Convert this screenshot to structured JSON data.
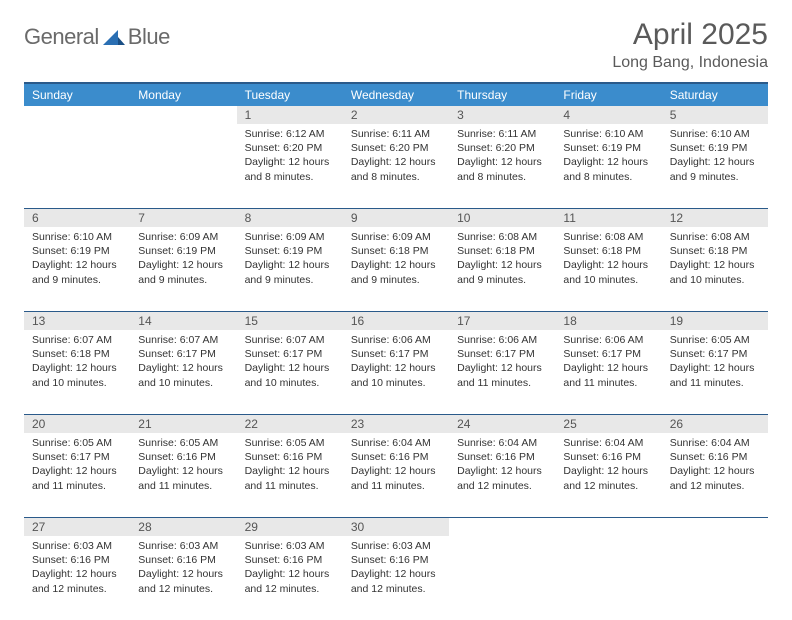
{
  "logo": {
    "part1": "General",
    "part2": "Blue"
  },
  "title": "April 2025",
  "location": "Long Bang, Indonesia",
  "colors": {
    "header_bg": "#3b8ccc",
    "header_text": "#ffffff",
    "daynum_bg": "#e8e8e8",
    "border": "#2a5a8a",
    "logo_gray": "#6a6a6a",
    "logo_blue": "#2a6fb3"
  },
  "weekdays": [
    "Sunday",
    "Monday",
    "Tuesday",
    "Wednesday",
    "Thursday",
    "Friday",
    "Saturday"
  ],
  "weeks": [
    [
      null,
      null,
      {
        "n": "1",
        "sr": "6:12 AM",
        "ss": "6:20 PM",
        "dl": "12 hours and 8 minutes."
      },
      {
        "n": "2",
        "sr": "6:11 AM",
        "ss": "6:20 PM",
        "dl": "12 hours and 8 minutes."
      },
      {
        "n": "3",
        "sr": "6:11 AM",
        "ss": "6:20 PM",
        "dl": "12 hours and 8 minutes."
      },
      {
        "n": "4",
        "sr": "6:10 AM",
        "ss": "6:19 PM",
        "dl": "12 hours and 8 minutes."
      },
      {
        "n": "5",
        "sr": "6:10 AM",
        "ss": "6:19 PM",
        "dl": "12 hours and 9 minutes."
      }
    ],
    [
      {
        "n": "6",
        "sr": "6:10 AM",
        "ss": "6:19 PM",
        "dl": "12 hours and 9 minutes."
      },
      {
        "n": "7",
        "sr": "6:09 AM",
        "ss": "6:19 PM",
        "dl": "12 hours and 9 minutes."
      },
      {
        "n": "8",
        "sr": "6:09 AM",
        "ss": "6:19 PM",
        "dl": "12 hours and 9 minutes."
      },
      {
        "n": "9",
        "sr": "6:09 AM",
        "ss": "6:18 PM",
        "dl": "12 hours and 9 minutes."
      },
      {
        "n": "10",
        "sr": "6:08 AM",
        "ss": "6:18 PM",
        "dl": "12 hours and 9 minutes."
      },
      {
        "n": "11",
        "sr": "6:08 AM",
        "ss": "6:18 PM",
        "dl": "12 hours and 10 minutes."
      },
      {
        "n": "12",
        "sr": "6:08 AM",
        "ss": "6:18 PM",
        "dl": "12 hours and 10 minutes."
      }
    ],
    [
      {
        "n": "13",
        "sr": "6:07 AM",
        "ss": "6:18 PM",
        "dl": "12 hours and 10 minutes."
      },
      {
        "n": "14",
        "sr": "6:07 AM",
        "ss": "6:17 PM",
        "dl": "12 hours and 10 minutes."
      },
      {
        "n": "15",
        "sr": "6:07 AM",
        "ss": "6:17 PM",
        "dl": "12 hours and 10 minutes."
      },
      {
        "n": "16",
        "sr": "6:06 AM",
        "ss": "6:17 PM",
        "dl": "12 hours and 10 minutes."
      },
      {
        "n": "17",
        "sr": "6:06 AM",
        "ss": "6:17 PM",
        "dl": "12 hours and 11 minutes."
      },
      {
        "n": "18",
        "sr": "6:06 AM",
        "ss": "6:17 PM",
        "dl": "12 hours and 11 minutes."
      },
      {
        "n": "19",
        "sr": "6:05 AM",
        "ss": "6:17 PM",
        "dl": "12 hours and 11 minutes."
      }
    ],
    [
      {
        "n": "20",
        "sr": "6:05 AM",
        "ss": "6:17 PM",
        "dl": "12 hours and 11 minutes."
      },
      {
        "n": "21",
        "sr": "6:05 AM",
        "ss": "6:16 PM",
        "dl": "12 hours and 11 minutes."
      },
      {
        "n": "22",
        "sr": "6:05 AM",
        "ss": "6:16 PM",
        "dl": "12 hours and 11 minutes."
      },
      {
        "n": "23",
        "sr": "6:04 AM",
        "ss": "6:16 PM",
        "dl": "12 hours and 11 minutes."
      },
      {
        "n": "24",
        "sr": "6:04 AM",
        "ss": "6:16 PM",
        "dl": "12 hours and 12 minutes."
      },
      {
        "n": "25",
        "sr": "6:04 AM",
        "ss": "6:16 PM",
        "dl": "12 hours and 12 minutes."
      },
      {
        "n": "26",
        "sr": "6:04 AM",
        "ss": "6:16 PM",
        "dl": "12 hours and 12 minutes."
      }
    ],
    [
      {
        "n": "27",
        "sr": "6:03 AM",
        "ss": "6:16 PM",
        "dl": "12 hours and 12 minutes."
      },
      {
        "n": "28",
        "sr": "6:03 AM",
        "ss": "6:16 PM",
        "dl": "12 hours and 12 minutes."
      },
      {
        "n": "29",
        "sr": "6:03 AM",
        "ss": "6:16 PM",
        "dl": "12 hours and 12 minutes."
      },
      {
        "n": "30",
        "sr": "6:03 AM",
        "ss": "6:16 PM",
        "dl": "12 hours and 12 minutes."
      },
      null,
      null,
      null
    ]
  ],
  "labels": {
    "sunrise": "Sunrise: ",
    "sunset": "Sunset: ",
    "daylight": "Daylight: "
  }
}
